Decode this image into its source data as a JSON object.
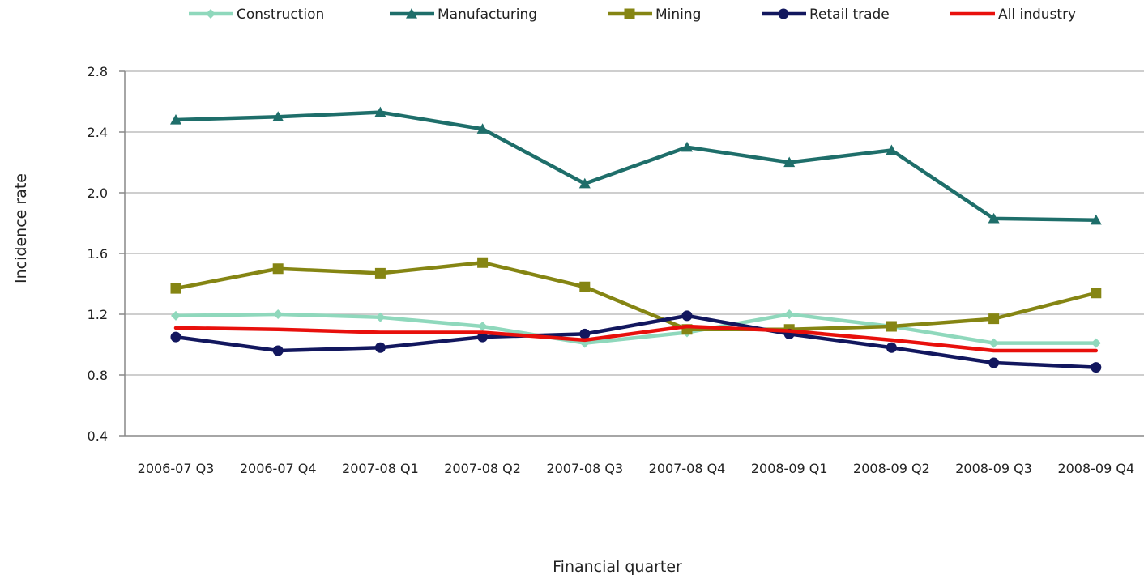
{
  "chart_data": {
    "type": "line",
    "title": "",
    "xlabel": "Financial quarter",
    "ylabel": "Incidence rate",
    "ylim": [
      0.4,
      2.8
    ],
    "yticks": [
      "0.4",
      "0.8",
      "1.2",
      "1.6",
      "2.0",
      "2.4",
      "2.8"
    ],
    "grid": "horizontal",
    "legend_position": "top",
    "categories": [
      "2006-07 Q3",
      "2006-07 Q4",
      "2007-08 Q1",
      "2007-08 Q2",
      "2007-08 Q3",
      "2007-08 Q4",
      "2008-09 Q1",
      "2008-09 Q2",
      "2008-09 Q3",
      "2008-09 Q4"
    ],
    "series": [
      {
        "name": "Construction",
        "color": "#8fd8bc",
        "marker": "diamond",
        "values": [
          1.19,
          1.2,
          1.18,
          1.12,
          1.01,
          1.08,
          1.2,
          1.12,
          1.01,
          1.01
        ]
      },
      {
        "name": "Manufacturing",
        "color": "#1e6e6a",
        "marker": "triangle",
        "values": [
          2.48,
          2.5,
          2.53,
          2.42,
          2.06,
          2.3,
          2.2,
          2.28,
          1.83,
          1.82
        ]
      },
      {
        "name": "Mining",
        "color": "#858513",
        "marker": "square",
        "values": [
          1.37,
          1.5,
          1.47,
          1.54,
          1.38,
          1.1,
          1.1,
          1.12,
          1.17,
          1.34
        ]
      },
      {
        "name": "Retail trade",
        "color": "#12175e",
        "marker": "circle",
        "values": [
          1.05,
          0.96,
          0.98,
          1.05,
          1.07,
          1.19,
          1.07,
          0.98,
          0.88,
          0.85
        ]
      },
      {
        "name": "All industry",
        "color": "#e8100c",
        "marker": "none",
        "values": [
          1.11,
          1.1,
          1.08,
          1.08,
          1.03,
          1.12,
          1.09,
          1.03,
          0.96,
          0.96
        ]
      }
    ]
  }
}
